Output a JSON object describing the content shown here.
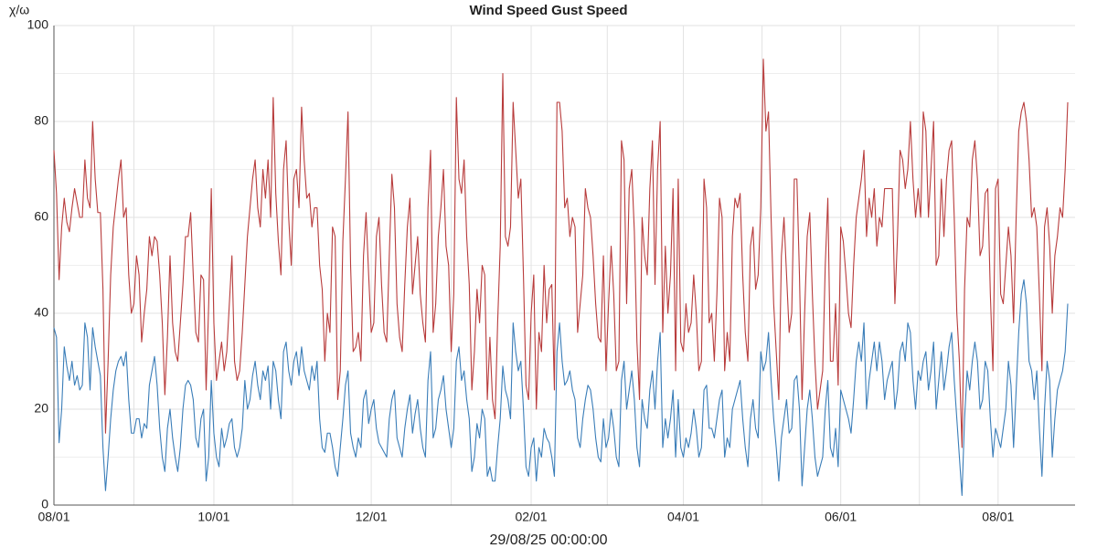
{
  "chart_data": {
    "type": "line",
    "y_label": "χ/ω",
    "x_label": "29/08/25 00:00:00",
    "ylim": [
      0,
      100
    ],
    "yticks": [
      0,
      20,
      40,
      60,
      80,
      100
    ],
    "grid": true,
    "categories": [
      "08/01",
      null,
      null,
      null,
      null,
      null,
      null,
      null,
      null,
      null,
      null,
      null,
      null,
      null,
      null,
      null,
      null,
      null,
      null,
      null,
      null,
      null,
      null,
      null,
      null,
      null,
      null,
      null,
      null,
      null,
      null,
      null,
      null,
      null,
      null,
      null,
      null,
      null,
      null,
      null,
      null,
      null,
      null,
      null,
      null,
      null,
      null,
      null,
      null,
      null,
      null,
      null,
      null,
      null,
      null,
      null,
      null,
      null,
      null,
      null,
      null,
      null,
      "10/01",
      null,
      null,
      null,
      null,
      null,
      null,
      null,
      null,
      null,
      null,
      null,
      null,
      null,
      null,
      null,
      null,
      null,
      null,
      null,
      null,
      null,
      null,
      null,
      null,
      null,
      null,
      null,
      null,
      null,
      null,
      null,
      null,
      null,
      null,
      null,
      null,
      null,
      null,
      null,
      null,
      null,
      null,
      null,
      null,
      null,
      null,
      null,
      null,
      null,
      null,
      null,
      null,
      null,
      null,
      null,
      null,
      null,
      null,
      null,
      null,
      "12/01",
      null,
      null,
      null,
      null,
      null,
      null,
      null,
      null,
      null,
      null,
      null,
      null,
      null,
      null,
      null,
      null,
      null,
      null,
      null,
      null,
      null,
      null,
      null,
      null,
      null,
      null,
      null,
      null,
      null,
      null,
      null,
      null,
      null,
      null,
      null,
      null,
      null,
      null,
      null,
      null,
      null,
      null,
      null,
      null,
      null,
      null,
      null,
      null,
      null,
      null,
      null,
      null,
      null,
      null,
      null,
      null,
      null,
      null,
      null,
      null,
      null,
      "02/01",
      null,
      null,
      null,
      null,
      null,
      null,
      null,
      null,
      null,
      null,
      null,
      null,
      null,
      null,
      null,
      null,
      null,
      null,
      null,
      null,
      null,
      null,
      null,
      null,
      null,
      null,
      null,
      null,
      null,
      null,
      null,
      null,
      null,
      null,
      null,
      null,
      null,
      null,
      null,
      null,
      null,
      null,
      null,
      null,
      null,
      null,
      null,
      null,
      null,
      null,
      null,
      null,
      null,
      null,
      null,
      null,
      null,
      null,
      "04/01",
      null,
      null,
      null,
      null,
      null,
      null,
      null,
      null,
      null,
      null,
      null,
      null,
      null,
      null,
      null,
      null,
      null,
      null,
      null,
      null,
      null,
      null,
      null,
      null,
      null,
      null,
      null,
      null,
      null,
      null,
      null,
      null,
      null,
      null,
      null,
      null,
      null,
      null,
      null,
      null,
      null,
      null,
      null,
      null,
      null,
      null,
      null,
      null,
      null,
      null,
      null,
      null,
      null,
      null,
      null,
      null,
      null,
      null,
      null,
      null,
      "06/01",
      null,
      null,
      null,
      null,
      null,
      null,
      null,
      null,
      null,
      null,
      null,
      null,
      null,
      null,
      null,
      null,
      null,
      null,
      null,
      null,
      null,
      null,
      null,
      null,
      null,
      null,
      null,
      null,
      null,
      null,
      null,
      null,
      null,
      null,
      null,
      null,
      null,
      null,
      null,
      null,
      null,
      null,
      null,
      null,
      null,
      null,
      null,
      null,
      null,
      null,
      null,
      null,
      null,
      null,
      null,
      null,
      null,
      null,
      null,
      null,
      "08/01",
      null,
      null,
      null,
      null,
      null,
      null,
      null,
      null,
      null,
      null,
      null,
      null,
      null,
      null,
      null,
      null,
      null,
      null,
      null,
      null,
      null,
      null,
      null,
      null,
      null,
      null,
      null
    ],
    "series": [
      {
        "name": "Wind Speed",
        "color": "#3a7db8",
        "values": [
          37,
          35,
          13,
          20,
          33,
          29,
          26,
          30,
          25,
          27,
          24,
          25,
          38,
          35,
          24,
          37,
          33,
          30,
          27,
          12,
          3,
          10,
          18,
          24,
          28,
          30,
          31,
          29,
          32,
          22,
          15,
          15,
          18,
          18,
          14,
          17,
          16,
          25,
          28,
          31,
          25,
          16,
          10,
          7,
          16,
          20,
          14,
          10,
          7,
          12,
          20,
          25,
          26,
          25,
          22,
          14,
          12,
          18,
          20,
          5,
          10,
          26,
          15,
          10,
          8,
          16,
          12,
          14,
          17,
          18,
          12,
          10,
          12,
          16,
          26,
          20,
          22,
          27,
          30,
          25,
          22,
          28,
          26,
          29,
          20,
          30,
          28,
          22,
          18,
          32,
          34,
          28,
          25,
          30,
          32,
          27,
          33,
          28,
          26,
          24,
          29,
          26,
          30,
          18,
          12,
          11,
          15,
          15,
          12,
          8,
          6,
          12,
          18,
          25,
          28,
          15,
          12,
          10,
          14,
          12,
          22,
          24,
          17,
          20,
          22,
          16,
          13,
          12,
          11,
          10,
          18,
          22,
          24,
          14,
          12,
          10,
          16,
          20,
          23,
          15,
          19,
          22,
          16,
          12,
          10,
          26,
          32,
          14,
          16,
          22,
          24,
          27,
          20,
          16,
          12,
          16,
          30,
          33,
          26,
          28,
          22,
          18,
          7,
          10,
          17,
          14,
          20,
          18,
          6,
          8,
          5,
          5,
          12,
          18,
          29,
          24,
          22,
          18,
          38,
          32,
          28,
          30,
          20,
          8,
          6,
          12,
          14,
          5,
          12,
          10,
          16,
          14,
          13,
          10,
          6,
          32,
          38,
          30,
          25,
          26,
          28,
          24,
          22,
          14,
          12,
          18,
          22,
          25,
          24,
          20,
          14,
          10,
          9,
          18,
          12,
          14,
          20,
          16,
          10,
          8,
          26,
          30,
          20,
          24,
          28,
          22,
          12,
          8,
          22,
          18,
          16,
          24,
          28,
          20,
          30,
          36,
          12,
          18,
          14,
          18,
          24,
          10,
          22,
          12,
          10,
          14,
          12,
          15,
          20,
          16,
          10,
          12,
          24,
          25,
          16,
          16,
          14,
          18,
          22,
          24,
          10,
          14,
          12,
          20,
          22,
          24,
          26,
          18,
          12,
          8,
          18,
          22,
          16,
          14,
          32,
          28,
          30,
          36,
          26,
          18,
          12,
          5,
          14,
          18,
          22,
          15,
          16,
          26,
          27,
          20,
          4,
          12,
          20,
          24,
          18,
          10,
          6,
          8,
          10,
          20,
          26,
          12,
          10,
          16,
          8,
          24,
          22,
          20,
          18,
          15,
          22,
          30,
          34,
          30,
          38,
          20,
          26,
          30,
          34,
          28,
          34,
          30,
          22,
          26,
          28,
          30,
          20,
          24,
          32,
          34,
          30,
          38,
          36,
          26,
          20,
          28,
          26,
          30,
          32,
          24,
          28,
          34,
          20,
          26,
          32,
          24,
          28,
          33,
          36,
          26,
          18,
          10,
          2,
          18,
          28,
          24,
          30,
          34,
          30,
          20,
          22,
          30,
          28,
          18,
          10,
          16,
          14,
          12,
          16,
          20,
          30,
          25,
          12,
          24,
          36,
          44,
          47,
          42,
          30,
          28,
          22,
          28,
          16,
          6,
          20,
          30,
          26,
          10,
          18,
          24,
          26,
          28,
          32,
          42
        ]
      },
      {
        "name": "Gust Speed",
        "color": "#b83c3c",
        "values": [
          74,
          65,
          47,
          58,
          64,
          59,
          57,
          62,
          66,
          63,
          60,
          60,
          72,
          64,
          62,
          80,
          68,
          61,
          61,
          45,
          15,
          30,
          48,
          58,
          63,
          68,
          72,
          60,
          62,
          48,
          40,
          42,
          52,
          48,
          34,
          40,
          45,
          56,
          52,
          56,
          55,
          48,
          38,
          23,
          35,
          52,
          38,
          32,
          30,
          38,
          46,
          56,
          56,
          61,
          48,
          36,
          34,
          48,
          47,
          24,
          42,
          66,
          38,
          26,
          30,
          34,
          28,
          32,
          42,
          52,
          30,
          26,
          28,
          36,
          46,
          56,
          62,
          68,
          72,
          62,
          58,
          70,
          64,
          72,
          60,
          85,
          65,
          55,
          48,
          70,
          76,
          60,
          50,
          68,
          70,
          62,
          83,
          72,
          64,
          65,
          58,
          62,
          62,
          50,
          45,
          30,
          40,
          36,
          58,
          56,
          22,
          28,
          55,
          68,
          82,
          50,
          32,
          33,
          36,
          30,
          52,
          61,
          48,
          36,
          38,
          56,
          60,
          46,
          36,
          34,
          52,
          69,
          62,
          42,
          35,
          32,
          46,
          58,
          64,
          44,
          50,
          56,
          44,
          38,
          34,
          62,
          74,
          36,
          42,
          56,
          62,
          70,
          54,
          50,
          32,
          44,
          85,
          68,
          65,
          72,
          56,
          46,
          24,
          32,
          45,
          38,
          50,
          48,
          22,
          35,
          22,
          18,
          38,
          54,
          90,
          56,
          54,
          58,
          84,
          74,
          64,
          68,
          48,
          25,
          22,
          40,
          48,
          20,
          36,
          32,
          50,
          38,
          45,
          46,
          24,
          84,
          84,
          78,
          62,
          64,
          56,
          60,
          58,
          36,
          42,
          48,
          66,
          62,
          60,
          52,
          42,
          35,
          34,
          52,
          28,
          42,
          54,
          44,
          28,
          30,
          76,
          72,
          42,
          66,
          70,
          57,
          34,
          22,
          60,
          52,
          48,
          66,
          76,
          46,
          70,
          80,
          36,
          54,
          40,
          48,
          66,
          28,
          68,
          34,
          32,
          42,
          36,
          38,
          48,
          40,
          28,
          30,
          68,
          62,
          38,
          40,
          30,
          44,
          64,
          60,
          28,
          36,
          30,
          56,
          64,
          62,
          65,
          48,
          36,
          30,
          54,
          58,
          45,
          48,
          62,
          93,
          78,
          82,
          60,
          42,
          32,
          22,
          52,
          60,
          48,
          36,
          40,
          68,
          68,
          48,
          22,
          40,
          56,
          61,
          44,
          30,
          20,
          24,
          28,
          50,
          64,
          30,
          30,
          42,
          25,
          58,
          55,
          48,
          40,
          37,
          50,
          60,
          64,
          68,
          74,
          56,
          64,
          60,
          66,
          54,
          60,
          58,
          66,
          66,
          66,
          66,
          42,
          56,
          74,
          72,
          66,
          70,
          80,
          68,
          60,
          66,
          60,
          82,
          78,
          60,
          70,
          80,
          50,
          52,
          68,
          56,
          68,
          74,
          76,
          60,
          40,
          30,
          12,
          45,
          60,
          58,
          72,
          76,
          68,
          52,
          54,
          65,
          66,
          44,
          28,
          66,
          68,
          44,
          42,
          50,
          58,
          52,
          38,
          60,
          78,
          82,
          84,
          80,
          72,
          60,
          62,
          58,
          44,
          28,
          58,
          62,
          54,
          40,
          52,
          56,
          62,
          60,
          70,
          84
        ]
      }
    ]
  }
}
